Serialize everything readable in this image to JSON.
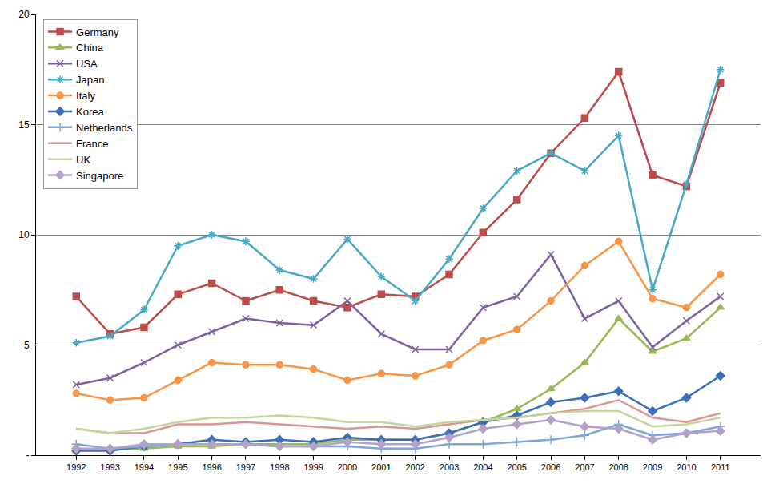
{
  "chart_data": {
    "type": "line",
    "categories": [
      "1992",
      "1993",
      "1994",
      "1995",
      "1996",
      "1997",
      "1998",
      "1999",
      "2000",
      "2001",
      "2002",
      "2003",
      "2004",
      "2005",
      "2006",
      "2007",
      "2008",
      "2009",
      "2010",
      "2011"
    ],
    "series": [
      {
        "name": "Germany",
        "color": "#BE4B48",
        "marker": "square",
        "values": [
          7.2,
          5.5,
          5.8,
          7.3,
          7.8,
          7.0,
          7.5,
          7.0,
          6.7,
          7.3,
          7.2,
          8.2,
          10.1,
          11.6,
          13.7,
          15.3,
          17.4,
          12.7,
          12.2,
          16.9
        ]
      },
      {
        "name": "China",
        "color": "#98B954",
        "marker": "triangle-up",
        "values": [
          0.2,
          0.3,
          0.3,
          0.4,
          0.4,
          0.5,
          0.5,
          0.5,
          0.7,
          0.7,
          0.7,
          1.0,
          1.5,
          2.1,
          3.0,
          4.2,
          6.2,
          4.7,
          5.3,
          6.7
        ]
      },
      {
        "name": "USA",
        "color": "#7D60A0",
        "marker": "x",
        "values": [
          3.2,
          3.5,
          4.2,
          5.0,
          5.6,
          6.2,
          6.0,
          5.9,
          7.0,
          5.5,
          4.8,
          4.8,
          6.7,
          7.2,
          9.1,
          6.2,
          7.0,
          4.9,
          6.1,
          7.2
        ]
      },
      {
        "name": "Japan",
        "color": "#46AAC5",
        "marker": "asterisk",
        "values": [
          5.1,
          5.4,
          6.6,
          9.5,
          10.0,
          9.7,
          8.4,
          8.0,
          9.8,
          8.1,
          7.0,
          8.9,
          11.2,
          12.9,
          13.7,
          12.9,
          14.5,
          7.5,
          12.3,
          17.5
        ]
      },
      {
        "name": "Italy",
        "color": "#F79646",
        "marker": "circle",
        "values": [
          2.8,
          2.5,
          2.6,
          3.4,
          4.2,
          4.1,
          4.1,
          3.9,
          3.4,
          3.7,
          3.6,
          4.1,
          5.2,
          5.7,
          7.0,
          8.6,
          9.7,
          7.1,
          6.7,
          8.2
        ]
      },
      {
        "name": "Korea",
        "color": "#3B6FB6",
        "marker": "diamond",
        "values": [
          0.2,
          0.2,
          0.4,
          0.5,
          0.7,
          0.6,
          0.7,
          0.6,
          0.8,
          0.7,
          0.7,
          1.0,
          1.5,
          1.8,
          2.4,
          2.6,
          2.9,
          2.0,
          2.6,
          3.6
        ]
      },
      {
        "name": "Netherlands",
        "color": "#7EA6D8",
        "marker": "cross",
        "values": [
          0.5,
          0.3,
          0.4,
          0.5,
          0.5,
          0.5,
          0.4,
          0.4,
          0.4,
          0.3,
          0.3,
          0.5,
          0.5,
          0.6,
          0.7,
          0.9,
          1.4,
          0.9,
          1.0,
          1.3
        ]
      },
      {
        "name": "France",
        "color": "#D99694",
        "marker": "none",
        "values": [
          1.2,
          1.0,
          1.0,
          1.4,
          1.4,
          1.5,
          1.4,
          1.3,
          1.2,
          1.3,
          1.2,
          1.4,
          1.6,
          1.7,
          1.9,
          2.1,
          2.5,
          1.7,
          1.5,
          1.9
        ]
      },
      {
        "name": "UK",
        "color": "#C3D69B",
        "marker": "none",
        "values": [
          1.2,
          1.0,
          1.2,
          1.5,
          1.7,
          1.7,
          1.8,
          1.7,
          1.5,
          1.5,
          1.3,
          1.5,
          1.6,
          1.7,
          1.9,
          2.0,
          2.0,
          1.3,
          1.4,
          1.7
        ]
      },
      {
        "name": "Singapore",
        "color": "#B3A2C7",
        "marker": "diamond",
        "values": [
          0.3,
          0.3,
          0.5,
          0.5,
          0.5,
          0.5,
          0.4,
          0.4,
          0.6,
          0.5,
          0.5,
          0.8,
          1.2,
          1.4,
          1.6,
          1.3,
          1.2,
          0.7,
          1.0,
          1.1
        ]
      }
    ],
    "ylim": [
      0,
      20
    ],
    "yticks": [
      {
        "value": 0,
        "label": "-"
      },
      5,
      10,
      15,
      20
    ],
    "grid": true,
    "legend": "top-left"
  }
}
